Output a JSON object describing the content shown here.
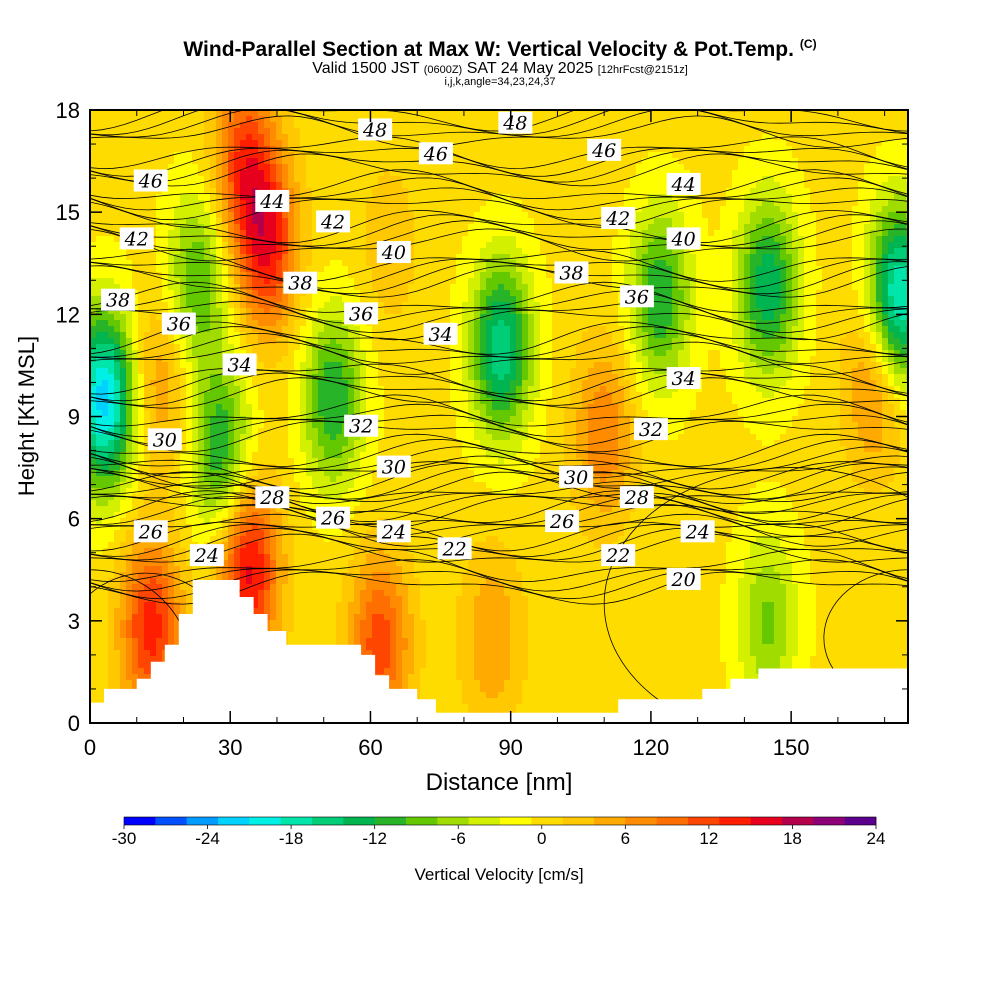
{
  "header": {
    "title": "Wind-Parallel Section at Max W: Vertical Velocity & Pot.Temp.",
    "copyright": "(C)",
    "valid_main": "Valid 1500 JST",
    "valid_utc": "(0600Z)",
    "valid_date": "SAT 24 May 2025",
    "forecast": "[12hrFcst@2151z]",
    "indices": "i,j,k,angle=34,23,24,37"
  },
  "chart_data": {
    "type": "heatmap",
    "xlabel": "Distance [nm]",
    "ylabel": "Height [Kft MSL]",
    "xlim": [
      0,
      175
    ],
    "ylim": [
      0,
      18
    ],
    "x_ticks": [
      "0",
      "30",
      "60",
      "90",
      "120",
      "150"
    ],
    "x_tick_values": [
      0,
      30,
      60,
      90,
      120,
      150
    ],
    "y_ticks": [
      "0",
      "3",
      "6",
      "9",
      "12",
      "15",
      "18"
    ],
    "y_tick_values": [
      0,
      3,
      6,
      9,
      12,
      15,
      18
    ],
    "colorbar": {
      "label": "Vertical Velocity [cm/s]",
      "tick_labels": [
        "-30",
        "-24",
        "-18",
        "-12",
        "-6",
        "0",
        "6",
        "12",
        "18",
        "24"
      ],
      "tick_values": [
        -30,
        -24,
        -18,
        -12,
        -6,
        0,
        6,
        12,
        18,
        24
      ],
      "colors": [
        "#0000ff",
        "#0050ff",
        "#009bff",
        "#00d2ff",
        "#00f0e6",
        "#00e6aa",
        "#00cd78",
        "#00b450",
        "#28b428",
        "#64c800",
        "#a0dc00",
        "#d2f000",
        "#ffff00",
        "#ffdc00",
        "#ffc800",
        "#ffaa00",
        "#ff8c00",
        "#ff6e00",
        "#ff4600",
        "#ff1e00",
        "#e6001e",
        "#b4004b",
        "#8c0078",
        "#5a008c"
      ]
    },
    "velocity_centers": [
      {
        "x": 3,
        "y": 9.5,
        "w": -22
      },
      {
        "x": 15,
        "y": 10,
        "w": 6
      },
      {
        "x": 23,
        "y": 13,
        "w": -10
      },
      {
        "x": 38,
        "y": 14,
        "w": 14
      },
      {
        "x": 33,
        "y": 16.5,
        "w": 12
      },
      {
        "x": 28,
        "y": 8,
        "w": -12
      },
      {
        "x": 52,
        "y": 9.5,
        "w": -12
      },
      {
        "x": 64,
        "y": 14,
        "w": 3
      },
      {
        "x": 88,
        "y": 11,
        "w": -16
      },
      {
        "x": 110,
        "y": 8.5,
        "w": 8
      },
      {
        "x": 122,
        "y": 12.5,
        "w": -12
      },
      {
        "x": 145,
        "y": 12.8,
        "w": -14
      },
      {
        "x": 173,
        "y": 12.5,
        "w": -20
      },
      {
        "x": 13,
        "y": 2.8,
        "w": 14
      },
      {
        "x": 34,
        "y": 4.5,
        "w": 16
      },
      {
        "x": 62,
        "y": 2.3,
        "w": 12
      },
      {
        "x": 86,
        "y": 2.5,
        "w": 6
      },
      {
        "x": 145,
        "y": 3,
        "w": -8
      },
      {
        "x": 168,
        "y": 10,
        "w": 8
      }
    ],
    "background_w": 0,
    "terrain": [
      [
        0,
        0.6
      ],
      [
        3,
        0.6
      ],
      [
        3,
        1
      ],
      [
        10,
        1
      ],
      [
        10,
        1.3
      ],
      [
        13,
        1.3
      ],
      [
        13,
        1.8
      ],
      [
        16,
        1.8
      ],
      [
        16,
        2.3
      ],
      [
        19,
        2.3
      ],
      [
        19,
        3.2
      ],
      [
        22,
        3.2
      ],
      [
        22,
        4.2
      ],
      [
        32,
        4.2
      ],
      [
        32,
        3.7
      ],
      [
        35,
        3.7
      ],
      [
        35,
        3.2
      ],
      [
        38,
        3.2
      ],
      [
        38,
        2.7
      ],
      [
        42,
        2.7
      ],
      [
        42,
        2.3
      ],
      [
        58,
        2.3
      ],
      [
        58,
        2
      ],
      [
        61,
        2
      ],
      [
        61,
        1.4
      ],
      [
        64,
        1.4
      ],
      [
        64,
        1
      ],
      [
        70,
        1
      ],
      [
        70,
        0.7
      ],
      [
        74,
        0.7
      ],
      [
        74,
        0.3
      ],
      [
        97,
        0.3
      ],
      [
        97,
        0.3
      ],
      [
        113,
        0.3
      ],
      [
        113,
        0.7
      ],
      [
        131,
        0.7
      ],
      [
        131,
        1
      ],
      [
        137,
        1
      ],
      [
        137,
        1.3
      ],
      [
        143,
        1.3
      ],
      [
        143,
        1.6
      ],
      [
        175,
        1.6
      ]
    ],
    "theta_lines": [
      20,
      22,
      24,
      26,
      28,
      30,
      32,
      34,
      36,
      38,
      40,
      42,
      44,
      46,
      48
    ],
    "theta_labels": [
      {
        "text": "48",
        "x": 61,
        "y": 17.4
      },
      {
        "text": "48",
        "x": 91,
        "y": 17.6
      },
      {
        "text": "46",
        "x": 13,
        "y": 15.9
      },
      {
        "text": "46",
        "x": 74,
        "y": 16.7
      },
      {
        "text": "46",
        "x": 110,
        "y": 16.8
      },
      {
        "text": "44",
        "x": 39,
        "y": 15.3
      },
      {
        "text": "44",
        "x": 127,
        "y": 15.8
      },
      {
        "text": "42",
        "x": 10,
        "y": 14.2
      },
      {
        "text": "42",
        "x": 52,
        "y": 14.7
      },
      {
        "text": "42",
        "x": 113,
        "y": 14.8
      },
      {
        "text": "40",
        "x": 65,
        "y": 13.8
      },
      {
        "text": "40",
        "x": 127,
        "y": 14.2
      },
      {
        "text": "38",
        "x": 6,
        "y": 12.4
      },
      {
        "text": "38",
        "x": 45,
        "y": 12.9
      },
      {
        "text": "38",
        "x": 103,
        "y": 13.2
      },
      {
        "text": "36",
        "x": 19,
        "y": 11.7
      },
      {
        "text": "36",
        "x": 58,
        "y": 12
      },
      {
        "text": "36",
        "x": 117,
        "y": 12.5
      },
      {
        "text": "34",
        "x": 32,
        "y": 10.5
      },
      {
        "text": "34",
        "x": 75,
        "y": 11.4
      },
      {
        "text": "34",
        "x": 127,
        "y": 10.1
      },
      {
        "text": "32",
        "x": 58,
        "y": 8.7
      },
      {
        "text": "32",
        "x": 120,
        "y": 8.6
      },
      {
        "text": "30",
        "x": 16,
        "y": 8.3
      },
      {
        "text": "30",
        "x": 65,
        "y": 7.5
      },
      {
        "text": "30",
        "x": 104,
        "y": 7.2
      },
      {
        "text": "28",
        "x": 39,
        "y": 6.6
      },
      {
        "text": "28",
        "x": 117,
        "y": 6.6
      },
      {
        "text": "26",
        "x": 13,
        "y": 5.6
      },
      {
        "text": "26",
        "x": 52,
        "y": 6
      },
      {
        "text": "26",
        "x": 101,
        "y": 5.9
      },
      {
        "text": "24",
        "x": 25,
        "y": 4.9
      },
      {
        "text": "24",
        "x": 65,
        "y": 5.6
      },
      {
        "text": "24",
        "x": 130,
        "y": 5.6
      },
      {
        "text": "22",
        "x": 78,
        "y": 5.1
      },
      {
        "text": "22",
        "x": 113,
        "y": 4.9
      },
      {
        "text": "20",
        "x": 127,
        "y": 4.2
      }
    ]
  }
}
